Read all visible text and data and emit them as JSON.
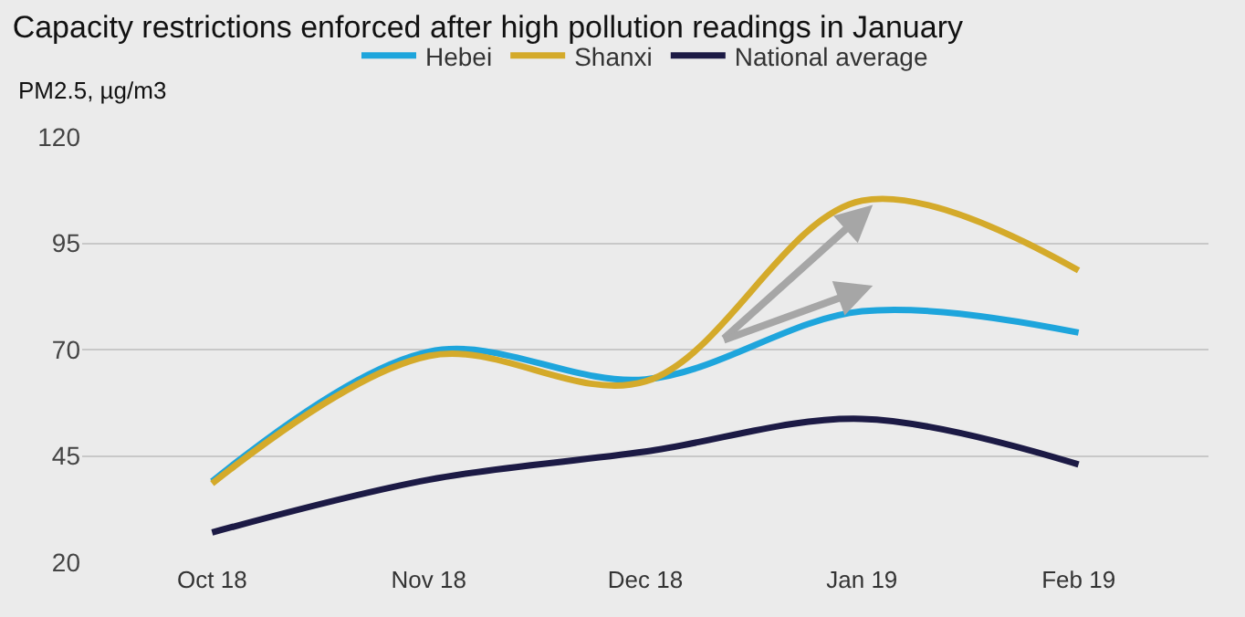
{
  "chart_data": {
    "type": "line",
    "title": "Capacity restrictions enforced after high pollution readings in January",
    "ylabel": "PM2.5, µg/m3",
    "categories": [
      "Oct 18",
      "Nov 18",
      "Dec 18",
      "Jan 19",
      "Feb 19"
    ],
    "series": [
      {
        "name": "Hebei",
        "color": "#1ea5dc",
        "values": [
          39,
          69.5,
          63,
          79,
          74
        ]
      },
      {
        "name": "Shanxi",
        "color": "#d4aa2a",
        "values": [
          38.5,
          68.5,
          62.5,
          105,
          88.6
        ]
      },
      {
        "name": "National average",
        "color": "#1c1a45",
        "values": [
          27,
          39.4,
          46,
          53.7,
          43
        ]
      }
    ],
    "ylim": [
      20,
      120
    ],
    "yticks": [
      20,
      45,
      70,
      95,
      120
    ],
    "grid": "y",
    "legend": "top",
    "marker": "none",
    "line_style": "solid"
  }
}
